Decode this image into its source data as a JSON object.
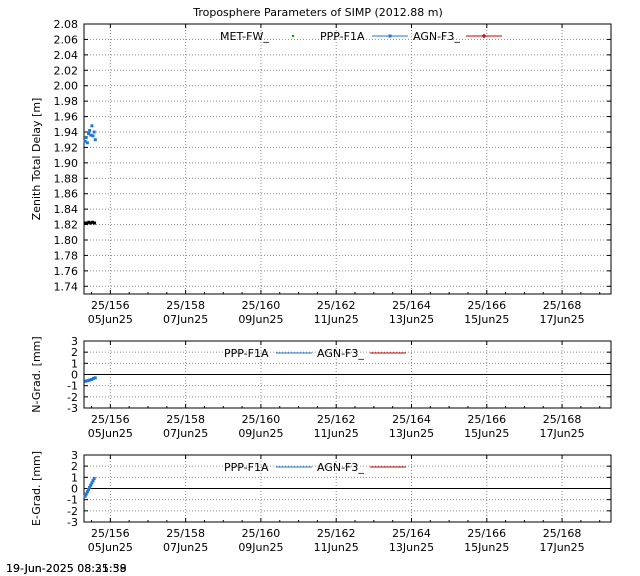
{
  "title": "Troposphere Parameters of SIMP (2012.88 m)",
  "footer": {
    "timestamp_a": "19-Jun-2025 08:25:59",
    "timestamp_b": "19-Jun-2025 08:31:38"
  },
  "colors": {
    "met": "#00a000",
    "ppp": "#1f77d4",
    "agn": "#cc0000",
    "black": "#000000",
    "grid": "#8c8c8c"
  },
  "chart_data": [
    {
      "type": "scatter",
      "panel": "ztd",
      "title": "Troposphere Parameters of SIMP (2012.88 m)",
      "xlabel": "",
      "ylabel": "Zenith Total Delay [m]",
      "xlim": [
        155.3,
        169.3
      ],
      "ylim": [
        1.73,
        2.08
      ],
      "grid": true,
      "legend_position": "top",
      "yticks": [
        "1.74",
        "1.76",
        "1.78",
        "1.80",
        "1.82",
        "1.84",
        "1.86",
        "1.88",
        "1.90",
        "1.92",
        "1.94",
        "1.96",
        "1.98",
        "2.00",
        "2.02",
        "2.04",
        "2.06",
        "2.08"
      ],
      "ytick_values": [
        1.74,
        1.76,
        1.78,
        1.8,
        1.82,
        1.84,
        1.86,
        1.88,
        1.9,
        1.92,
        1.94,
        1.96,
        1.98,
        2.0,
        2.02,
        2.04,
        2.06,
        2.08
      ],
      "xticks_top": [
        "25/156",
        "25/158",
        "25/160",
        "25/162",
        "25/164",
        "25/166",
        "25/168"
      ],
      "xticks_bottom": [
        "05Jun25",
        "07Jun25",
        "09Jun25",
        "11Jun25",
        "13Jun25",
        "15Jun25",
        "17Jun25"
      ],
      "xtick_values": [
        156,
        158,
        160,
        162,
        164,
        166,
        168
      ],
      "legend": [
        "MET-FW_",
        "PPP-F1A",
        "AGN-F3_"
      ],
      "series": [
        {
          "name": "PPP-F1A",
          "color_key": "ppp",
          "x": [
            155.33,
            155.36,
            155.39,
            155.42,
            155.45,
            155.48,
            155.51,
            155.54,
            155.57,
            155.6
          ],
          "y": [
            1.928,
            1.933,
            1.926,
            1.938,
            1.942,
            1.936,
            1.948,
            1.935,
            1.94,
            1.93
          ]
        },
        {
          "name": "black-markers",
          "color_key": "black",
          "x": [
            155.33,
            155.38,
            155.43,
            155.48,
            155.53,
            155.58
          ],
          "y": [
            1.822,
            1.822,
            1.823,
            1.822,
            1.823,
            1.822
          ]
        }
      ]
    },
    {
      "type": "scatter",
      "panel": "ngrad",
      "ylabel": "N-Grad. [mm]",
      "xlim": [
        155.3,
        169.3
      ],
      "ylim": [
        -3,
        3
      ],
      "grid": true,
      "zero_line": true,
      "legend_position": "top",
      "yticks": [
        "3",
        "2",
        "1",
        "0",
        "-1",
        "-2",
        "-3"
      ],
      "ytick_values": [
        3,
        2,
        1,
        0,
        -1,
        -2,
        -3
      ],
      "xticks_top": [
        "25/156",
        "25/158",
        "25/160",
        "25/162",
        "25/164",
        "25/166",
        "25/168"
      ],
      "xticks_bottom": [
        "05Jun25",
        "07Jun25",
        "09Jun25",
        "11Jun25",
        "13Jun25",
        "15Jun25",
        "17Jun25"
      ],
      "xtick_values": [
        156,
        158,
        160,
        162,
        164,
        166,
        168
      ],
      "legend": [
        "PPP-F1A",
        "AGN-F3_"
      ],
      "series": [
        {
          "name": "PPP-F1A",
          "color_key": "ppp",
          "x": [
            155.35,
            155.4,
            155.45,
            155.5,
            155.55,
            155.6
          ],
          "y": [
            -0.6,
            -0.55,
            -0.5,
            -0.45,
            -0.35,
            -0.3
          ]
        }
      ]
    },
    {
      "type": "scatter",
      "panel": "egrad",
      "ylabel": "E-Grad. [mm]",
      "xlim": [
        155.3,
        169.3
      ],
      "ylim": [
        -3,
        3
      ],
      "grid": true,
      "zero_line": true,
      "legend_position": "top",
      "yticks": [
        "3",
        "2",
        "1",
        "0",
        "-1",
        "-2",
        "-3"
      ],
      "ytick_values": [
        3,
        2,
        1,
        0,
        -1,
        -2,
        -3
      ],
      "xticks_top": [
        "25/156",
        "25/158",
        "25/160",
        "25/162",
        "25/164",
        "25/166",
        "25/168"
      ],
      "xticks_bottom": [
        "05Jun25",
        "07Jun25",
        "09Jun25",
        "11Jun25",
        "13Jun25",
        "15Jun25",
        "17Jun25"
      ],
      "xtick_values": [
        156,
        158,
        160,
        162,
        164,
        166,
        168
      ],
      "legend": [
        "PPP-F1A",
        "AGN-F3_"
      ],
      "series": [
        {
          "name": "PPP-F1A",
          "color_key": "ppp",
          "x": [
            155.33,
            155.36,
            155.39,
            155.42,
            155.45,
            155.48,
            155.51,
            155.54,
            155.57
          ],
          "y": [
            -0.7,
            -0.5,
            -0.3,
            -0.1,
            0.1,
            0.3,
            0.5,
            0.7,
            0.9
          ]
        }
      ]
    }
  ]
}
